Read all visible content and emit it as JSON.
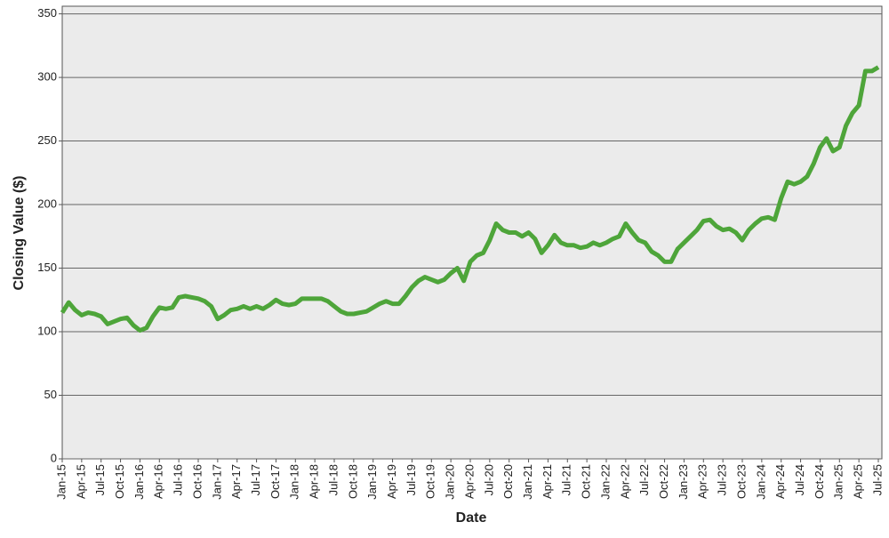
{
  "chart_data": {
    "type": "line",
    "x_label": "Date",
    "y_label": "Closing Value ($)",
    "ylim": [
      0,
      356
    ],
    "yticks": [
      0,
      50,
      100,
      150,
      200,
      250,
      300,
      350
    ],
    "grid": true,
    "xlim": [
      "2015-01",
      "2025-07"
    ],
    "xticks": [
      {
        "value": "2015-01",
        "label": "Jan-15"
      },
      {
        "value": "2015-04",
        "label": "Apr-15"
      },
      {
        "value": "2015-07",
        "label": "Jul-15"
      },
      {
        "value": "2015-10",
        "label": "Oct-15"
      },
      {
        "value": "2016-01",
        "label": "Jan-16"
      },
      {
        "value": "2016-04",
        "label": "Apr-16"
      },
      {
        "value": "2016-07",
        "label": "Jul-16"
      },
      {
        "value": "2016-10",
        "label": "Oct-16"
      },
      {
        "value": "2017-01",
        "label": "Jan-17"
      },
      {
        "value": "2017-04",
        "label": "Apr-17"
      },
      {
        "value": "2017-07",
        "label": "Jul-17"
      },
      {
        "value": "2017-10",
        "label": "Oct-17"
      },
      {
        "value": "2018-01",
        "label": "Jan-18"
      },
      {
        "value": "2018-04",
        "label": "Apr-18"
      },
      {
        "value": "2018-07",
        "label": "Jul-18"
      },
      {
        "value": "2018-10",
        "label": "Oct-18"
      },
      {
        "value": "2019-01",
        "label": "Jan-19"
      },
      {
        "value": "2019-04",
        "label": "Apr-19"
      },
      {
        "value": "2019-07",
        "label": "Jul-19"
      },
      {
        "value": "2019-10",
        "label": "Oct-19"
      },
      {
        "value": "2020-01",
        "label": "Jan-20"
      },
      {
        "value": "2020-04",
        "label": "Apr-20"
      },
      {
        "value": "2020-07",
        "label": "Jul-20"
      },
      {
        "value": "2020-10",
        "label": "Oct-20"
      },
      {
        "value": "2021-01",
        "label": "Jan-21"
      },
      {
        "value": "2021-04",
        "label": "Apr-21"
      },
      {
        "value": "2021-07",
        "label": "Jul-21"
      },
      {
        "value": "2021-10",
        "label": "Oct-21"
      },
      {
        "value": "2022-01",
        "label": "Jan-22"
      },
      {
        "value": "2022-04",
        "label": "Apr-22"
      },
      {
        "value": "2022-07",
        "label": "Jul-22"
      },
      {
        "value": "2022-10",
        "label": "Oct-22"
      },
      {
        "value": "2023-01",
        "label": "Jan-23"
      },
      {
        "value": "2023-04",
        "label": "Apr-23"
      },
      {
        "value": "2023-07",
        "label": "Jul-23"
      },
      {
        "value": "2023-10",
        "label": "Oct-23"
      },
      {
        "value": "2024-01",
        "label": "Jan-24"
      },
      {
        "value": "2024-04",
        "label": "Apr-24"
      },
      {
        "value": "2024-07",
        "label": "Jul-24"
      },
      {
        "value": "2024-10",
        "label": "Oct-24"
      },
      {
        "value": "2025-01",
        "label": "Jan-25"
      },
      {
        "value": "2025-04",
        "label": "Apr-25"
      },
      {
        "value": "2025-07",
        "label": "Jul-25"
      }
    ],
    "x": [
      "2015-01",
      "2015-02",
      "2015-03",
      "2015-04",
      "2015-05",
      "2015-06",
      "2015-07",
      "2015-08",
      "2015-09",
      "2015-10",
      "2015-11",
      "2015-12",
      "2016-01",
      "2016-02",
      "2016-03",
      "2016-04",
      "2016-05",
      "2016-06",
      "2016-07",
      "2016-08",
      "2016-09",
      "2016-10",
      "2016-11",
      "2016-12",
      "2017-01",
      "2017-02",
      "2017-03",
      "2017-04",
      "2017-05",
      "2017-06",
      "2017-07",
      "2017-08",
      "2017-09",
      "2017-10",
      "2017-11",
      "2017-12",
      "2018-01",
      "2018-02",
      "2018-03",
      "2018-04",
      "2018-05",
      "2018-06",
      "2018-07",
      "2018-08",
      "2018-09",
      "2018-10",
      "2018-11",
      "2018-12",
      "2019-01",
      "2019-02",
      "2019-03",
      "2019-04",
      "2019-05",
      "2019-06",
      "2019-07",
      "2019-08",
      "2019-09",
      "2019-10",
      "2019-11",
      "2019-12",
      "2020-01",
      "2020-02",
      "2020-03",
      "2020-04",
      "2020-05",
      "2020-06",
      "2020-07",
      "2020-08",
      "2020-09",
      "2020-10",
      "2020-11",
      "2020-12",
      "2021-01",
      "2021-02",
      "2021-03",
      "2021-04",
      "2021-05",
      "2021-06",
      "2021-07",
      "2021-08",
      "2021-09",
      "2021-10",
      "2021-11",
      "2021-12",
      "2022-01",
      "2022-02",
      "2022-03",
      "2022-04",
      "2022-05",
      "2022-06",
      "2022-07",
      "2022-08",
      "2022-09",
      "2022-10",
      "2022-11",
      "2022-12",
      "2023-01",
      "2023-02",
      "2023-03",
      "2023-04",
      "2023-05",
      "2023-06",
      "2023-07",
      "2023-08",
      "2023-09",
      "2023-10",
      "2023-11",
      "2023-12",
      "2024-01",
      "2024-02",
      "2024-03",
      "2024-04",
      "2024-05",
      "2024-06",
      "2024-07",
      "2024-08",
      "2024-09",
      "2024-10",
      "2024-11",
      "2024-12",
      "2025-01",
      "2025-02",
      "2025-03",
      "2025-04",
      "2025-05",
      "2025-06",
      "2025-07"
    ],
    "series": [
      {
        "color": "#4ea53a",
        "values": [
          115,
          123,
          117,
          113,
          115,
          114,
          112,
          106,
          108,
          110,
          111,
          105,
          101,
          103,
          112,
          119,
          118,
          119,
          127,
          128,
          127,
          126,
          124,
          120,
          110,
          113,
          117,
          118,
          120,
          118,
          120,
          118,
          121,
          125,
          122,
          121,
          122,
          126,
          126,
          126,
          126,
          124,
          120,
          116,
          114,
          114,
          115,
          116,
          119,
          122,
          124,
          122,
          122,
          128,
          135,
          140,
          143,
          141,
          139,
          141,
          146,
          150,
          140,
          155,
          160,
          162,
          172,
          185,
          180,
          178,
          178,
          175,
          178,
          173,
          162,
          168,
          176,
          170,
          168,
          168,
          166,
          167,
          170,
          168,
          170,
          173,
          175,
          185,
          178,
          172,
          170,
          163,
          160,
          155,
          155,
          165,
          170,
          175,
          180,
          187,
          188,
          183,
          180,
          181,
          178,
          172,
          180,
          185,
          189,
          190,
          188,
          205,
          218,
          216,
          218,
          222,
          232,
          245,
          252,
          242,
          245,
          262,
          272,
          278,
          305,
          305,
          308
        ]
      }
    ]
  }
}
